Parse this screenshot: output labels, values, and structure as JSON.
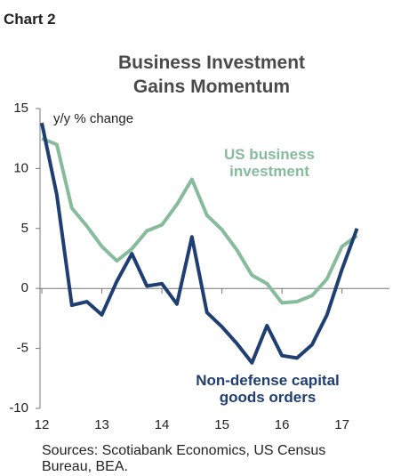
{
  "chart_data": {
    "type": "line",
    "label": "Chart 2",
    "title": "Business Investment Gains Momentum",
    "y_axis_label": "y/y % change",
    "source": "Sources: Scotiabank Economics, US Census Bureau, BEA.",
    "x": [
      12,
      12.25,
      12.5,
      12.75,
      13,
      13.25,
      13.5,
      13.75,
      14,
      14.25,
      14.5,
      14.75,
      15,
      15.25,
      15.5,
      15.75,
      16,
      16.25,
      16.5,
      16.75,
      17,
      17.25
    ],
    "series": [
      {
        "name": "US business investment",
        "color": "#86bc9c",
        "values": [
          12.5,
          12.0,
          6.7,
          5.2,
          3.5,
          2.3,
          3.3,
          4.8,
          5.3,
          7.0,
          9.1,
          6.1,
          4.9,
          3.2,
          1.1,
          0.4,
          -1.2,
          -1.1,
          -0.6,
          0.8,
          3.5,
          4.4
        ]
      },
      {
        "name": "Non-defense capital goods orders",
        "color": "#1f3f73",
        "values": [
          13.8,
          7.8,
          -1.4,
          -1.1,
          -2.2,
          0.6,
          2.9,
          0.2,
          0.4,
          -1.3,
          4.3,
          -2.0,
          -3.2,
          -4.6,
          -6.2,
          -3.1,
          -5.6,
          -5.8,
          -4.7,
          -2.2,
          1.6,
          5.0
        ]
      }
    ],
    "xlim": [
      11.97,
      17.79
    ],
    "xticks": [
      12,
      13,
      14,
      15,
      16,
      17
    ],
    "ylim": [
      -10,
      15
    ],
    "yticks": [
      -10,
      -5,
      0,
      5,
      10,
      15
    ]
  }
}
